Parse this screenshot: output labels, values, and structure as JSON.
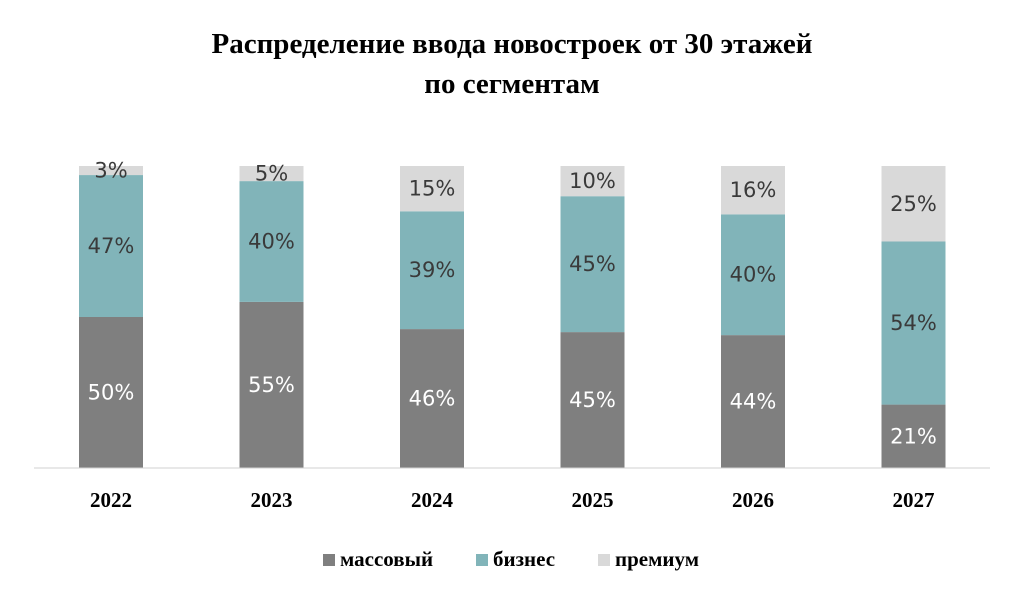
{
  "chart_data": {
    "type": "bar",
    "stacked": true,
    "title_lines": [
      "Распределение ввода новостроек от 30 этажей",
      "по сегментам"
    ],
    "categories": [
      "2022",
      "2023",
      "2024",
      "2025",
      "2026",
      "2027"
    ],
    "series": [
      {
        "name": "массовый",
        "color": "#7f7f7f",
        "label_color": "#ffffff",
        "values": [
          50,
          55,
          46,
          45,
          44,
          21
        ]
      },
      {
        "name": "бизнес",
        "color": "#81b4b9",
        "label_color": "#3a3a3a",
        "values": [
          47,
          40,
          39,
          45,
          40,
          54
        ]
      },
      {
        "name": "премиум",
        "color": "#d9d9d9",
        "label_color": "#3a3a3a",
        "values": [
          3,
          5,
          15,
          10,
          16,
          25
        ]
      }
    ],
    "value_suffix": "%",
    "ylim": [
      0,
      100
    ],
    "grid": false,
    "legend_position": "bottom"
  }
}
